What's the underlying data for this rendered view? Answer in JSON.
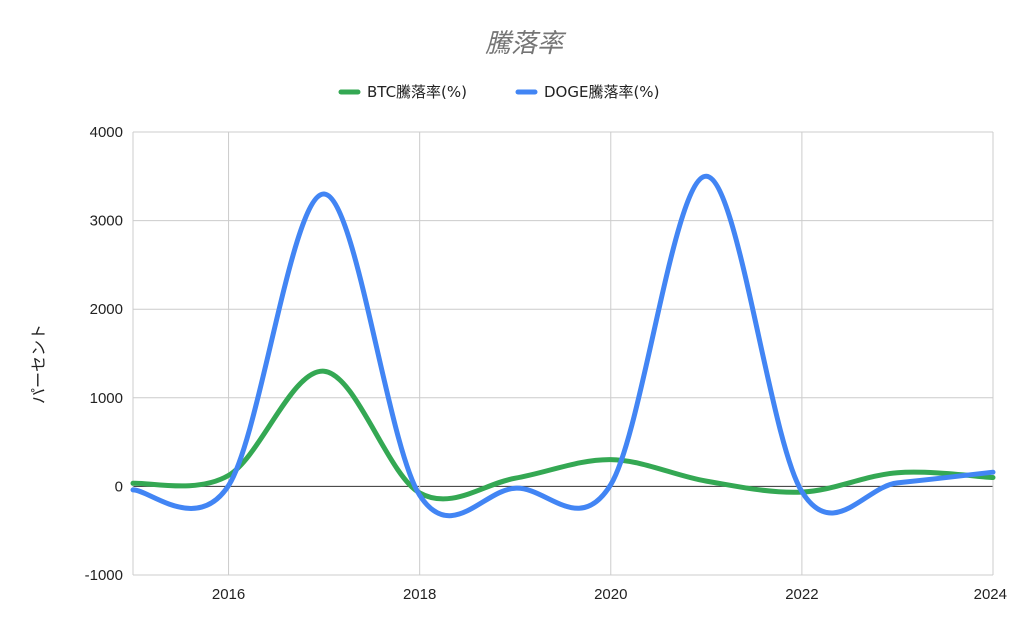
{
  "chart_data": {
    "type": "line",
    "title": "騰落率",
    "ylabel": "パーセント",
    "xlabel": "",
    "x": [
      2015,
      2016,
      2017,
      2018,
      2019,
      2020,
      2021,
      2022,
      2023,
      2024
    ],
    "xlim": [
      2015,
      2024
    ],
    "ylim": [
      -1000,
      4000
    ],
    "x_ticks": [
      "2016",
      "2018",
      "2020",
      "2022",
      "2024"
    ],
    "y_ticks": [
      "-1000",
      "0",
      "1000",
      "2000",
      "3000",
      "4000"
    ],
    "grid": true,
    "legend_position": "top",
    "smooth": true,
    "series": [
      {
        "name": "BTC騰落率(%)",
        "color": "#34a853",
        "values": [
          35,
          124,
          1300,
          -73,
          92,
          303,
          60,
          -64,
          155,
          100
        ]
      },
      {
        "name": "DOGE騰落率(%)",
        "color": "#4285f4",
        "values": [
          -40,
          10,
          3300,
          -100,
          -20,
          20,
          3500,
          -60,
          40,
          160
        ]
      }
    ]
  }
}
